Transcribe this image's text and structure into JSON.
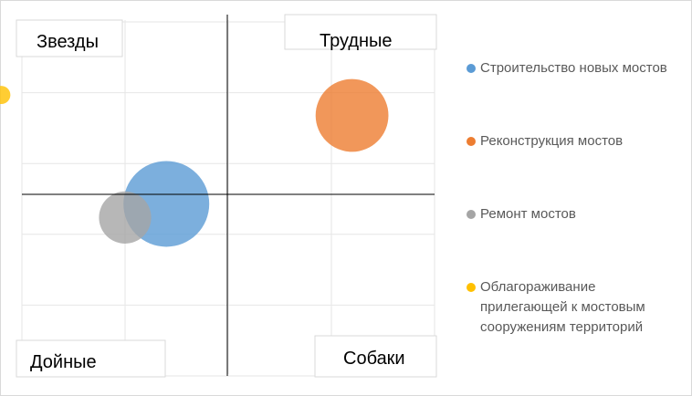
{
  "chart_data": {
    "type": "bubble",
    "quadrant_labels": {
      "top_left": "Звезды",
      "top_right": "Трудные",
      "bottom_left": "Дойные",
      "bottom_right": "Собаки"
    },
    "xlim": [
      -2,
      2
    ],
    "ylim": [
      -2.6,
      2.6
    ],
    "grid": true,
    "legend_position": "right",
    "series": [
      {
        "name": "Строительство новых мостов",
        "x": -0.6,
        "y": -0.1,
        "size": 100,
        "color": "#5b9bd5"
      },
      {
        "name": "Реконструкция мостов",
        "x": 1.2,
        "y": 1.2,
        "size": 72,
        "color": "#ed7d31"
      },
      {
        "name": "Ремонт мостов",
        "x": -1.0,
        "y": -0.3,
        "size": 37,
        "color": "#a5a5a5"
      },
      {
        "name": "Облагораживание прилегающей к мостовым сооружениям территорий",
        "x": -2.2,
        "y": 1.5,
        "size": 4.5,
        "color": "#ffc000"
      }
    ]
  }
}
